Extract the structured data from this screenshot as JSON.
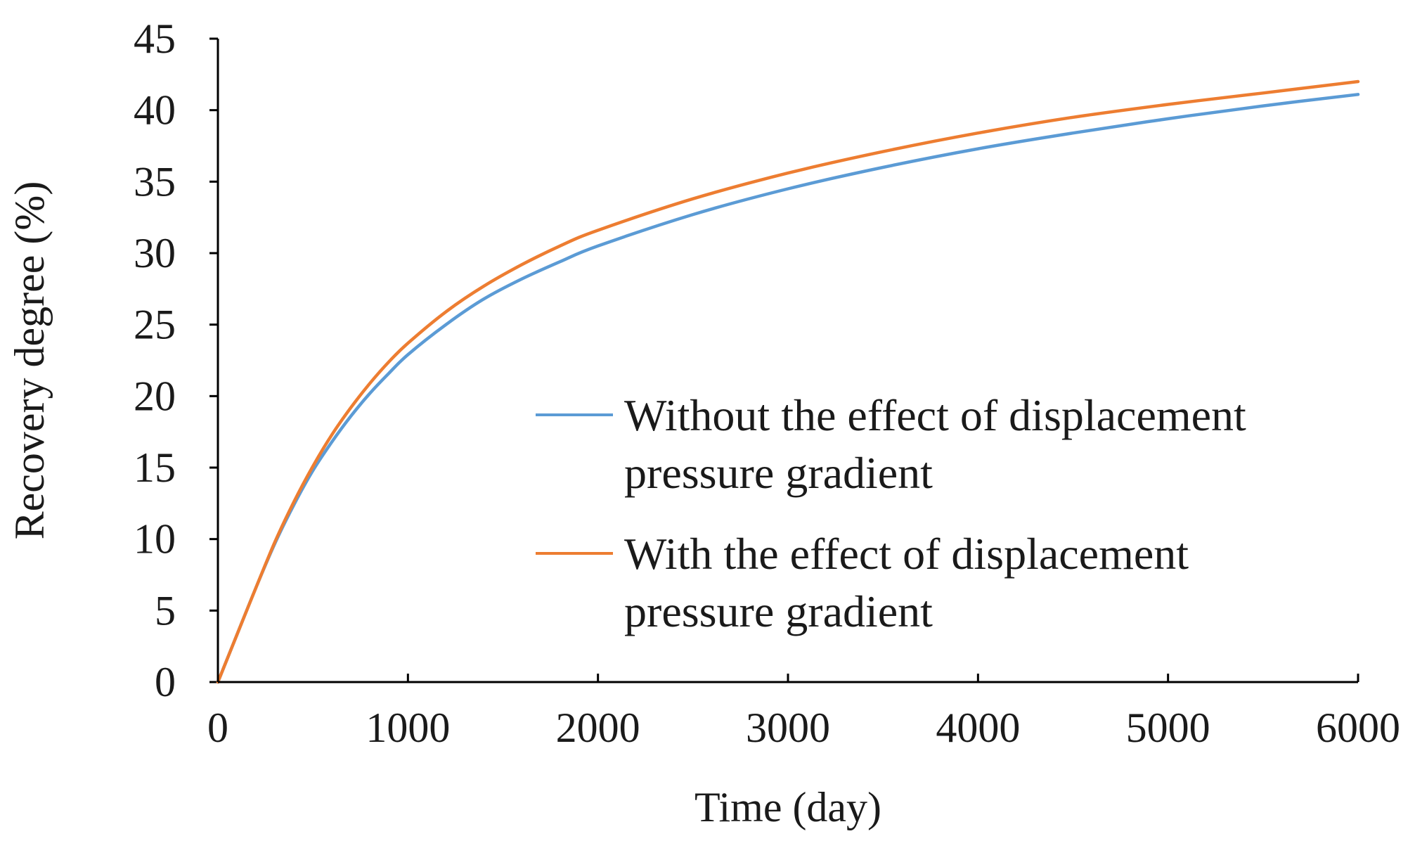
{
  "chart_data": {
    "type": "line",
    "title": "",
    "xlabel": "Time (day)",
    "ylabel": "Recovery degree (%)",
    "xlim": [
      0,
      6000
    ],
    "ylim": [
      0,
      45
    ],
    "xticks": [
      0,
      1000,
      2000,
      3000,
      4000,
      5000,
      6000
    ],
    "yticks": [
      0,
      5,
      10,
      15,
      20,
      25,
      30,
      35,
      40,
      45
    ],
    "grid": false,
    "legend_position": "center-right",
    "series": [
      {
        "name": "Without the effect of displacement pressure gradient",
        "color": "#5b9bd5",
        "x": [
          0,
          100,
          200,
          300,
          400,
          500,
          600,
          700,
          800,
          900,
          1000,
          1200,
          1400,
          1600,
          1800,
          2000,
          2500,
          3000,
          3500,
          4000,
          4500,
          5000,
          5500,
          6000
        ],
        "y": [
          0,
          3.3,
          6.6,
          9.7,
          12.4,
          14.8,
          16.8,
          18.6,
          20.2,
          21.6,
          22.9,
          25.0,
          26.8,
          28.2,
          29.4,
          30.5,
          32.7,
          34.5,
          36.0,
          37.3,
          38.4,
          39.4,
          40.3,
          41.1
        ]
      },
      {
        "name": "With the effect of displacement pressure gradient",
        "color": "#ed7d31",
        "x": [
          0,
          100,
          200,
          300,
          400,
          500,
          600,
          700,
          800,
          900,
          1000,
          1200,
          1400,
          1600,
          1800,
          2000,
          2500,
          3000,
          3500,
          4000,
          4500,
          5000,
          5500,
          6000
        ],
        "y": [
          0,
          3.3,
          6.6,
          9.8,
          12.6,
          15.1,
          17.3,
          19.2,
          20.9,
          22.4,
          23.7,
          25.9,
          27.7,
          29.2,
          30.5,
          31.6,
          33.8,
          35.6,
          37.1,
          38.4,
          39.5,
          40.4,
          41.2,
          42.0
        ]
      }
    ]
  }
}
